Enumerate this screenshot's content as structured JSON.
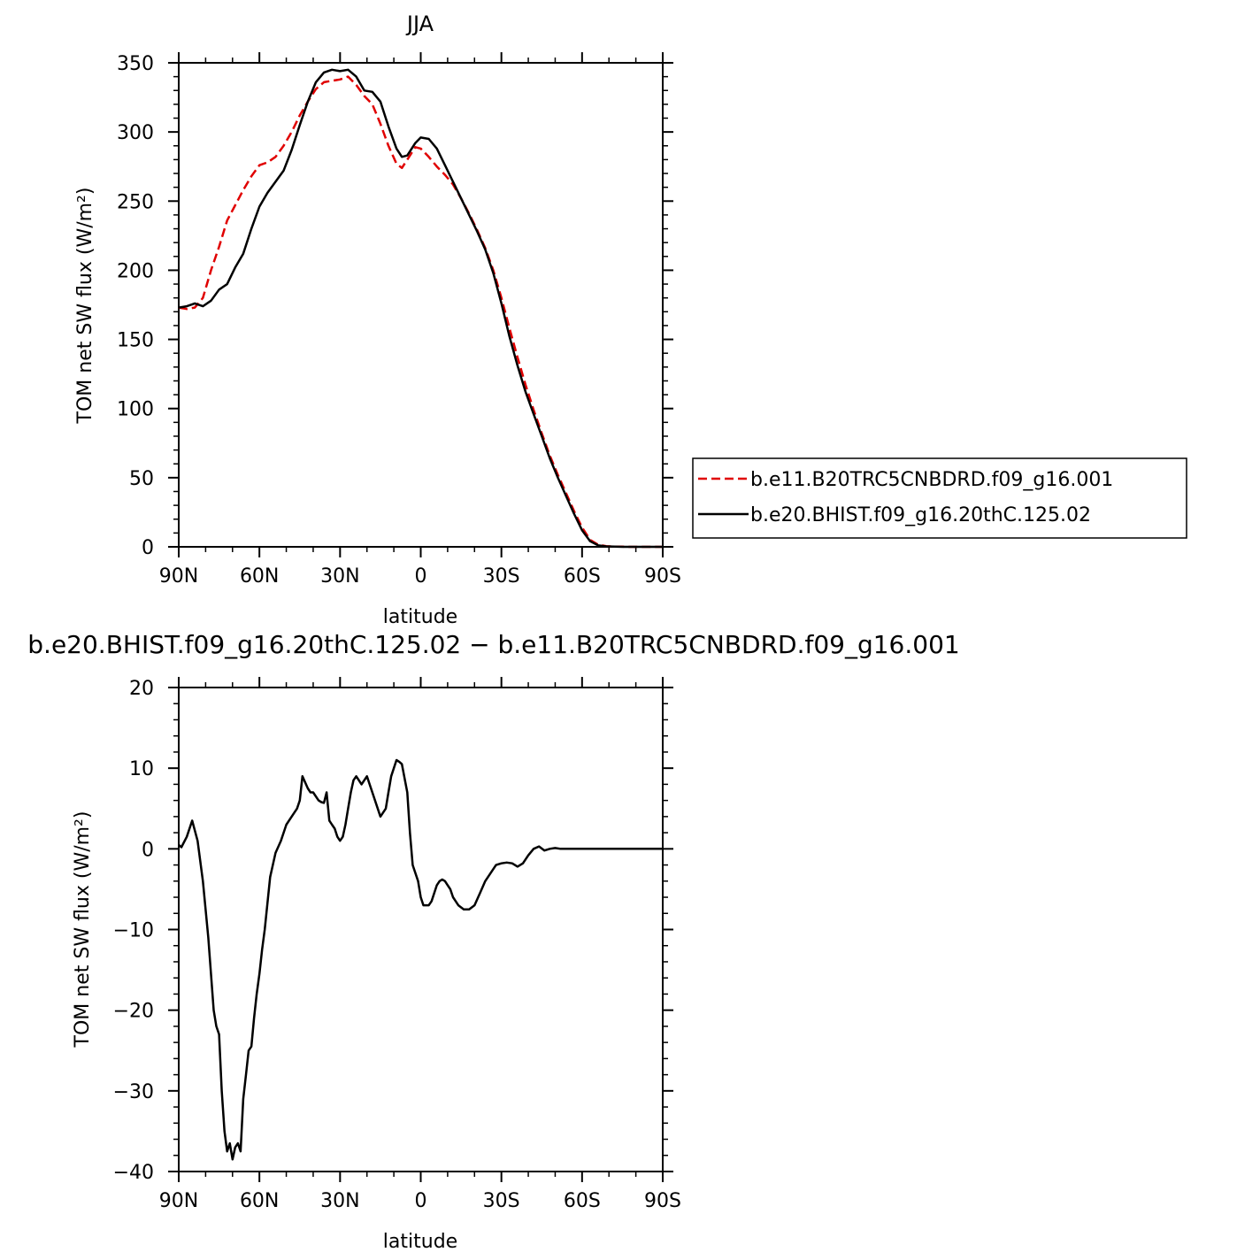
{
  "chart_data": [
    {
      "type": "line",
      "title": "JJA",
      "xlabel": "latitude",
      "ylabel": "TOM net SW flux (W/m²)",
      "xlim": [
        90,
        -90
      ],
      "ylim": [
        0,
        350
      ],
      "x_ticks": [
        "90N",
        "60N",
        "30N",
        "0",
        "30S",
        "60S",
        "90S"
      ],
      "x_tick_values": [
        90,
        60,
        30,
        0,
        -30,
        -60,
        -90
      ],
      "y_ticks": [
        0,
        50,
        100,
        150,
        200,
        250,
        300,
        350
      ],
      "legend_position": "right",
      "series": [
        {
          "name": "b.e11.B20TRC5CNBDRD.f09_g16.001",
          "color": "#e00000",
          "dash": "dashed",
          "x": [
            90,
            87,
            84,
            81,
            78,
            75,
            72,
            69,
            66,
            63,
            60,
            57,
            54,
            51,
            48,
            45,
            42,
            39,
            36,
            33,
            30,
            27,
            24,
            21,
            18,
            15,
            12,
            9,
            7,
            5,
            2,
            0,
            -3,
            -6,
            -9,
            -12,
            -15,
            -18,
            -21,
            -24,
            -27,
            -30,
            -33,
            -36,
            -39,
            -42,
            -45,
            -48,
            -51,
            -54,
            -57,
            -60,
            -63,
            -66,
            -69,
            -72,
            -75,
            -78,
            -81,
            -84,
            -87,
            -90
          ],
          "y": [
            173,
            172,
            173,
            180,
            200,
            217,
            236,
            247,
            258,
            268,
            276,
            278,
            282,
            290,
            300,
            312,
            322,
            331,
            336,
            337,
            338,
            340,
            334,
            326,
            320,
            306,
            290,
            277,
            274,
            280,
            289,
            288,
            282,
            275,
            269,
            262,
            252,
            241,
            229,
            216,
            200,
            180,
            158,
            137,
            117,
            99,
            82,
            66,
            52,
            39,
            26,
            14,
            5,
            1.5,
            0.5,
            0.2,
            0.1,
            0,
            0,
            0,
            0,
            0
          ]
        },
        {
          "name": "b.e20.BHIST.f09_g16.20thC.125.02",
          "color": "#000000",
          "dash": "solid",
          "x": [
            90,
            87,
            84,
            81,
            78,
            75,
            72,
            69,
            66,
            63,
            60,
            57,
            54,
            51,
            48,
            45,
            42,
            39,
            36,
            33,
            30,
            27,
            24,
            21,
            18,
            15,
            12,
            9,
            7,
            5,
            2,
            0,
            -3,
            -6,
            -9,
            -12,
            -15,
            -18,
            -21,
            -24,
            -27,
            -30,
            -33,
            -36,
            -39,
            -42,
            -45,
            -48,
            -51,
            -54,
            -57,
            -60,
            -63,
            -66,
            -69,
            -72,
            -75,
            -78,
            -81,
            -84,
            -87,
            -90
          ],
          "y": [
            173,
            174,
            176,
            174,
            178,
            186,
            190,
            202,
            212,
            230,
            246,
            256,
            264,
            272,
            287,
            305,
            322,
            336,
            343,
            345,
            344,
            345,
            340,
            330,
            329,
            322,
            304,
            288,
            282,
            283,
            292,
            296,
            295,
            288,
            276,
            264,
            252,
            240,
            228,
            215,
            198,
            176,
            152,
            131,
            112,
            96,
            80,
            64,
            50,
            37,
            24,
            12,
            4,
            1,
            0.3,
            0.1,
            0,
            0,
            0,
            0,
            0,
            0
          ]
        }
      ]
    },
    {
      "type": "line",
      "title": "b.e20.BHIST.f09_g16.20thC.125.02 − b.e11.B20TRC5CNBDRD.f09_g16.001",
      "xlabel": "latitude",
      "ylabel": "TOM net SW flux (W/m²)",
      "xlim": [
        90,
        -90
      ],
      "ylim": [
        -40,
        20
      ],
      "x_ticks": [
        "90N",
        "60N",
        "30N",
        "0",
        "30S",
        "60S",
        "90S"
      ],
      "x_tick_values": [
        90,
        60,
        30,
        0,
        -30,
        -60,
        -90
      ],
      "y_ticks": [
        -40,
        -30,
        -20,
        -10,
        0,
        10,
        20
      ],
      "y_tick_labels": [
        "−40",
        "−30",
        "−20",
        "−10",
        "0",
        "10",
        "20"
      ],
      "series": [
        {
          "name": "",
          "color": "#000000",
          "dash": "solid",
          "x": [
            90,
            89,
            87,
            85,
            83,
            81,
            79,
            77,
            76,
            75,
            74,
            73,
            72,
            71,
            70,
            69,
            68,
            67,
            66,
            65,
            64,
            63,
            62,
            61,
            60,
            59,
            58,
            56,
            54,
            52,
            50,
            48,
            46,
            45,
            44,
            42,
            41,
            40,
            38,
            37,
            36,
            35,
            34,
            33,
            32,
            31,
            30,
            29,
            28,
            27,
            26,
            25,
            24,
            22,
            21,
            20,
            18,
            16,
            15,
            13,
            12,
            11,
            9,
            8,
            7,
            5,
            4,
            3,
            1,
            0,
            -1,
            -2,
            -3,
            -4,
            -5,
            -6,
            -7,
            -8,
            -9,
            -10,
            -11,
            -12,
            -14,
            -16,
            -18,
            -20,
            -22,
            -24,
            -26,
            -28,
            -30,
            -32,
            -34,
            -35,
            -36,
            -38,
            -40,
            -42,
            -44,
            -46,
            -48,
            -50,
            -52,
            -54,
            -56,
            -58,
            -60,
            -62,
            -63,
            -65,
            -67,
            -70,
            -75,
            -80,
            -90
          ],
          "y": [
            0.5,
            0.2,
            1.5,
            3.5,
            1,
            -4,
            -11,
            -20,
            -22,
            -23,
            -30,
            -35,
            -37.5,
            -36.5,
            -38.5,
            -37,
            -36.5,
            -37.5,
            -31,
            -28,
            -25,
            -24.5,
            -21,
            -18,
            -15.5,
            -12.5,
            -10,
            -3.5,
            -0.5,
            1,
            3,
            4,
            5,
            6,
            9,
            7.5,
            7,
            7,
            6,
            5.8,
            5.7,
            7,
            3.5,
            3,
            2.5,
            1.5,
            1,
            1.5,
            3,
            5,
            7,
            8.5,
            9,
            8,
            8.5,
            9,
            7,
            5,
            4,
            5,
            7,
            9,
            11,
            10.8,
            10.5,
            7,
            2,
            -2,
            -4,
            -6,
            -7,
            -7,
            -7,
            -6.5,
            -5.5,
            -4.5,
            -4,
            -3.8,
            -4,
            -4.5,
            -5,
            -6,
            -7,
            -7.5,
            -7.5,
            -7,
            -5.5,
            -4,
            -3,
            -2,
            -1.8,
            -1.7,
            -1.8,
            -2,
            -2.2,
            -1.8,
            -0.8,
            0,
            0.3,
            -0.2,
            0,
            0.1,
            0,
            0,
            0,
            0,
            0,
            0,
            0,
            0,
            0,
            0,
            0,
            0,
            0
          ]
        }
      ]
    }
  ]
}
